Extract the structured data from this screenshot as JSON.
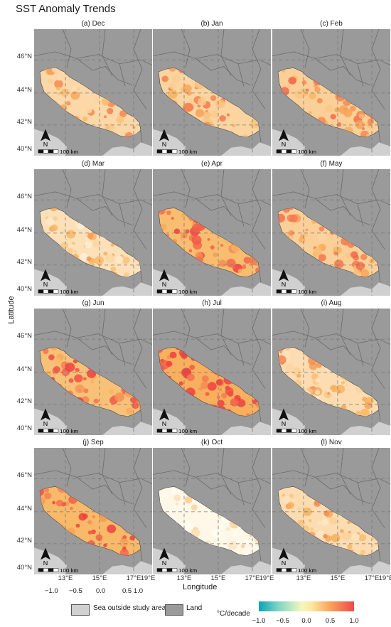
{
  "title": "SST Anomaly Trends",
  "panels": [
    {
      "label": "(a) Dec",
      "trend": 0.45
    },
    {
      "label": "(b) Jan",
      "trend": 0.5
    },
    {
      "label": "(c) Feb",
      "trend": 0.55
    },
    {
      "label": "(d) Mar",
      "trend": 0.35
    },
    {
      "label": "(e) Apr",
      "trend": 0.8
    },
    {
      "label": "(f) May",
      "trend": 0.55
    },
    {
      "label": "(g) Jun",
      "trend": 0.75
    },
    {
      "label": "(h) Jul",
      "trend": 0.95
    },
    {
      "label": "(i) Aug",
      "trend": 0.4
    },
    {
      "label": "(j) Sep",
      "trend": 0.85
    },
    {
      "label": "(k) Oct",
      "trend": 0.05
    },
    {
      "label": "(l) Nov",
      "trend": 0.4
    }
  ],
  "lat_ticks": [
    "46°N",
    "44°N",
    "42°N",
    "40°N"
  ],
  "lon_ticks": [
    "13°E",
    "15°E",
    "17°E",
    "19°E"
  ],
  "axis": {
    "ylabel": "Latitude",
    "xlabel": "Longitude"
  },
  "north_label": "N",
  "scale_label": "100 km",
  "stray_ticks": [
    "−1.0",
    "−0.5",
    "0.0",
    "0.5 1.0"
  ],
  "legend": {
    "sea_label": "Sea outside study area",
    "land_label": "Land",
    "cbar_title": "°C/decade",
    "cbar_ticks": [
      "−1.0",
      "−0.5",
      "0.0",
      "0.5",
      "1.0"
    ]
  },
  "colors": {
    "land": "#9a9a9a",
    "sea_outside": "#d0d0d0",
    "study_low": "#ffffff",
    "study_high": "#f04040"
  }
}
